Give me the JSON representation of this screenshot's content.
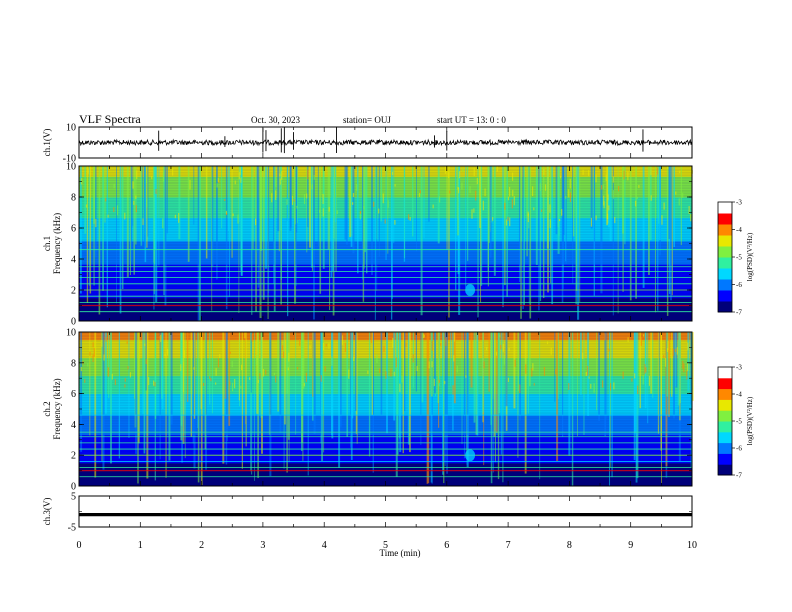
{
  "header": {
    "title": "VLF Spectra",
    "date": "Oct. 30, 2023",
    "station": "station= OUJ",
    "start": "start  UT =   13: 0  : 0"
  },
  "colors": {
    "colormap": [
      "#00007a",
      "#0000ff",
      "#0078ff",
      "#00d8ff",
      "#30f0a0",
      "#80f040",
      "#e8e800",
      "#ff8800",
      "#ff0000",
      "#ffffff"
    ],
    "trace": "#000000"
  },
  "chart_data": [
    {
      "id": "ch1-waveform",
      "type": "line",
      "ylabel": "ch.1(V)",
      "ylim": [
        -10,
        10
      ],
      "yticks": [
        "10",
        "-10"
      ],
      "series": [
        {
          "values": "noise trace near 0 V with sporadic impulsive spikes"
        }
      ]
    },
    {
      "id": "ch1-spectrogram",
      "type": "heatmap",
      "ylabel": "ch.1\nFrequency (kHz)",
      "ylim": [
        0,
        10
      ],
      "yticks": [
        "0",
        "2",
        "4",
        "6",
        "8",
        "10"
      ],
      "colorbar": {
        "label": "log(PSD)(V²/Hz)",
        "range": [
          -7,
          -3
        ],
        "ticks": [
          "-3",
          "-4",
          "-5",
          "-6",
          "-7"
        ]
      }
    },
    {
      "id": "ch2-spectrogram",
      "type": "heatmap",
      "ylabel": "ch.2\nFrequency (kHz)",
      "ylim": [
        0,
        10
      ],
      "yticks": [
        "0",
        "2",
        "4",
        "6",
        "8",
        "10"
      ],
      "colorbar": {
        "label": "log(PSD)(V²/Hz)",
        "range": [
          -7,
          -3
        ],
        "ticks": [
          "-3",
          "-4",
          "-5",
          "-6",
          "-7"
        ]
      }
    },
    {
      "id": "ch3-waveform",
      "type": "line",
      "ylabel": "ch.3(V)",
      "ylim": [
        -5,
        5
      ],
      "yticks": [
        "5",
        "-5"
      ],
      "series": [
        {
          "values": "flat trace at about -1 V"
        }
      ]
    }
  ],
  "xaxis": {
    "label": "Time (min)",
    "range": [
      0,
      10
    ],
    "ticks": [
      "0",
      "1",
      "2",
      "3",
      "4",
      "5",
      "6",
      "7",
      "8",
      "9",
      "10"
    ]
  }
}
